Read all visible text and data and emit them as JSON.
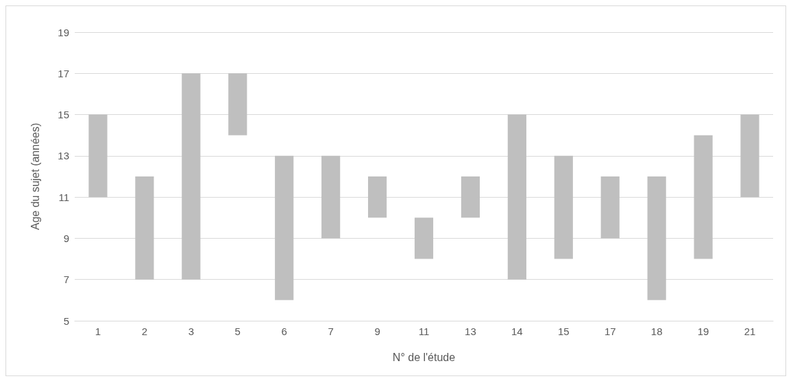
{
  "chart_data": {
    "type": "bar",
    "xlabel": "N° de l'étude",
    "ylabel": "Age du sujet (années)",
    "categories": [
      "1",
      "2",
      "3",
      "5",
      "6",
      "7",
      "9",
      "11",
      "13",
      "14",
      "15",
      "17",
      "18",
      "19",
      "21"
    ],
    "base": [
      11,
      7,
      7,
      14,
      6,
      9,
      10,
      8,
      10,
      7,
      8,
      9,
      6,
      8,
      11
    ],
    "values": [
      4,
      5,
      10,
      3,
      7,
      4,
      2,
      2,
      2,
      8,
      5,
      3,
      6,
      6,
      4
    ],
    "color": "#bfbfbf",
    "ylim": [
      5,
      19
    ],
    "yticks": [
      5,
      7,
      9,
      11,
      13,
      15,
      17,
      19
    ],
    "grid": "y"
  }
}
